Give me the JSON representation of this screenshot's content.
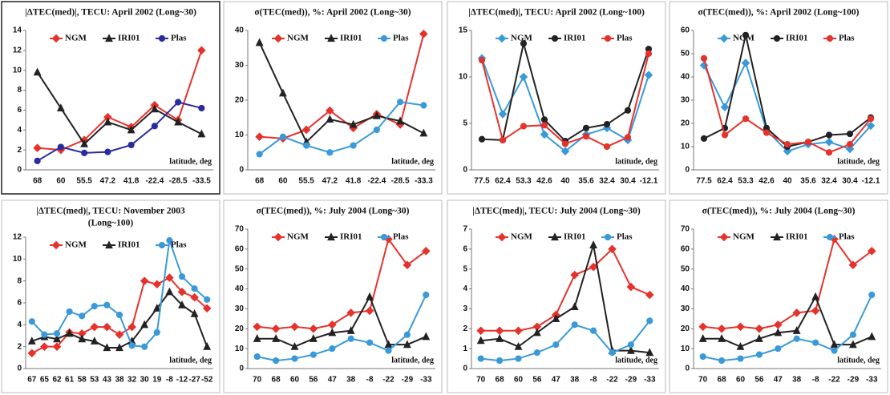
{
  "chart_data": [
    {
      "type": "line",
      "title": "|ΔTEC(med)|, TECU: April 2002 (Long~30)",
      "annotation": "latitude, deg",
      "categories": [
        "68",
        "60",
        "55.5",
        "47.2",
        "41.8",
        "-22.4",
        "-28.5",
        "-33.5"
      ],
      "ylim": [
        0,
        14
      ],
      "yticks": [
        0,
        2,
        4,
        6,
        8,
        10,
        12,
        14
      ],
      "series": [
        {
          "name": "NGM",
          "color": "#e5322c",
          "marker": "diamond",
          "values": [
            2.2,
            2.0,
            3.0,
            5.3,
            4.3,
            6.5,
            5.0,
            12.0
          ]
        },
        {
          "name": "IRI01",
          "color": "#222222",
          "marker": "triangle",
          "values": [
            9.8,
            6.2,
            2.6,
            4.8,
            4.0,
            6.1,
            4.8,
            3.6
          ]
        },
        {
          "name": "Plas",
          "color": "#2b2ba0",
          "marker": "circle",
          "values": [
            0.9,
            2.3,
            1.7,
            1.8,
            2.5,
            4.4,
            6.8,
            6.2
          ]
        }
      ]
    },
    {
      "type": "line",
      "title": "σ(TEC(med)), %: April 2002 (Long~30)",
      "annotation": "latitude, deg",
      "categories": [
        "68",
        "60",
        "55.5",
        "47.2",
        "41.8",
        "-22.4",
        "-28.5",
        "-33.3"
      ],
      "ylim": [
        0,
        40
      ],
      "yticks": [
        0,
        10,
        20,
        30,
        40
      ],
      "series": [
        {
          "name": "NGM",
          "color": "#e5322c",
          "marker": "diamond",
          "values": [
            9.5,
            9,
            11.5,
            17,
            12,
            16,
            13,
            39
          ]
        },
        {
          "name": "IRI01",
          "color": "#222222",
          "marker": "triangle",
          "values": [
            36.5,
            22,
            8,
            14.5,
            13,
            15.5,
            14,
            10.5
          ]
        },
        {
          "name": "Plas",
          "color": "#3a9ad9",
          "marker": "circle",
          "values": [
            4.5,
            9.5,
            7,
            5,
            7,
            11.5,
            19.5,
            18.5
          ]
        }
      ]
    },
    {
      "type": "line",
      "title": "|ΔTEC(med)|, TECU: April 2002 (Long~100)",
      "annotation": "latitude, deg",
      "categories": [
        "77.5",
        "62.4",
        "53.3",
        "42.6",
        "40",
        "35.6",
        "32.4",
        "30.4",
        "-12.1"
      ],
      "ylim": [
        0,
        15
      ],
      "yticks": [
        0,
        5,
        10,
        15
      ],
      "series": [
        {
          "name": "NGM",
          "color": "#3a9ad9",
          "marker": "diamond",
          "values": [
            12.0,
            6.0,
            10.0,
            3.8,
            2.0,
            3.8,
            4.5,
            3.2,
            10.2
          ]
        },
        {
          "name": "IRI01",
          "color": "#222222",
          "marker": "circle",
          "values": [
            3.3,
            3.2,
            13.6,
            5.4,
            3.1,
            4.5,
            4.9,
            6.4,
            13.0
          ]
        },
        {
          "name": "Plas",
          "color": "#e5322c",
          "marker": "circle",
          "values": [
            11.8,
            3.2,
            4.7,
            4.8,
            2.8,
            3.6,
            2.5,
            3.5,
            12.5
          ]
        }
      ]
    },
    {
      "type": "line",
      "title": "σ(TEC(med)), %: April 2002 (Long~100)",
      "annotation": "latitude, deg",
      "categories": [
        "77.5",
        "62.4",
        "53.3",
        "42.6",
        "40",
        "35.6",
        "32.4",
        "30.4",
        "-12.1"
      ],
      "ylim": [
        0,
        60
      ],
      "yticks": [
        0,
        10,
        20,
        30,
        40,
        50,
        60
      ],
      "series": [
        {
          "name": "NGM",
          "color": "#3a9ad9",
          "marker": "diamond",
          "values": [
            45,
            27,
            46,
            17,
            8,
            11,
            12,
            9,
            19
          ]
        },
        {
          "name": "IRI01",
          "color": "#222222",
          "marker": "circle",
          "values": [
            13.5,
            18,
            58,
            18,
            10,
            12,
            15,
            15.5,
            22.5
          ]
        },
        {
          "name": "Plas",
          "color": "#e5322c",
          "marker": "circle",
          "values": [
            48,
            15,
            22,
            16,
            11,
            12,
            7.5,
            11,
            22
          ]
        }
      ]
    },
    {
      "type": "line",
      "title": "|ΔTEC(med)|, TECU: November 2003",
      "subtitle": "(Long~100)",
      "annotation": "latitude, deg",
      "categories": [
        "67",
        "65",
        "62",
        "61",
        "58",
        "53",
        "43",
        "38",
        "32",
        "30",
        "19",
        "-8",
        "-12",
        "-27",
        "-52"
      ],
      "ylim": [
        0,
        12
      ],
      "yticks": [
        0,
        2,
        4,
        6,
        8,
        10,
        12
      ],
      "series": [
        {
          "name": "NGM",
          "color": "#e5322c",
          "marker": "diamond",
          "values": [
            1.4,
            2.0,
            2.0,
            3.3,
            3.2,
            3.8,
            3.8,
            3.1,
            3.8,
            8.0,
            7.7,
            8.3,
            7.0,
            6.5,
            5.5
          ]
        },
        {
          "name": "IRI01",
          "color": "#222222",
          "marker": "triangle",
          "values": [
            2.5,
            2.9,
            2.7,
            3.2,
            2.7,
            2.5,
            1.9,
            1.9,
            2.5,
            4.0,
            5.5,
            7.0,
            5.8,
            5.0,
            2.0
          ]
        },
        {
          "name": "Plas",
          "color": "#3a9ad9",
          "marker": "circle",
          "values": [
            4.3,
            3.1,
            3.2,
            5.2,
            4.8,
            5.7,
            5.8,
            4.9,
            2.1,
            2.0,
            3.3,
            11.7,
            8.4,
            7.3,
            6.3
          ]
        }
      ]
    },
    {
      "type": "line",
      "title": "σ(TEC(med)), %: July 2004 (Long~30)",
      "annotation": "latitude, deg",
      "categories": [
        "70",
        "68",
        "60",
        "56",
        "47",
        "38",
        "-8",
        "-22",
        "-29",
        "-33"
      ],
      "ylim": [
        0,
        70
      ],
      "yticks": [
        0,
        10,
        20,
        30,
        40,
        50,
        60,
        70
      ],
      "series": [
        {
          "name": "NGM",
          "color": "#e5322c",
          "marker": "diamond",
          "values": [
            21,
            20,
            21,
            20,
            22,
            28,
            29,
            65,
            52,
            59
          ]
        },
        {
          "name": "IRI01",
          "color": "#222222",
          "marker": "triangle",
          "values": [
            15,
            15,
            11,
            15,
            18,
            19,
            36,
            12,
            12,
            16
          ]
        },
        {
          "name": "Plas",
          "color": "#3a9ad9",
          "marker": "circle",
          "values": [
            6,
            4,
            5,
            7,
            10,
            15,
            13,
            9,
            17,
            37
          ]
        }
      ]
    },
    {
      "type": "line",
      "title": "|ΔTEC(med)|, TECU: July 2004 (Long~30)",
      "annotation": "latitude, deg",
      "categories": [
        "70",
        "68",
        "60",
        "56",
        "47",
        "38",
        "-8",
        "-22",
        "-29",
        "-33"
      ],
      "ylim": [
        0,
        7
      ],
      "yticks": [
        0,
        1,
        2,
        3,
        4,
        5,
        6,
        7
      ],
      "series": [
        {
          "name": "NGM",
          "color": "#e5322c",
          "marker": "diamond",
          "values": [
            1.9,
            1.9,
            1.9,
            2.1,
            2.7,
            4.7,
            5.1,
            6.0,
            4.1,
            3.7
          ]
        },
        {
          "name": "IRI01",
          "color": "#222222",
          "marker": "triangle",
          "values": [
            1.4,
            1.5,
            1.1,
            1.8,
            2.5,
            3.1,
            6.2,
            0.9,
            0.9,
            0.8
          ]
        },
        {
          "name": "Plas",
          "color": "#3a9ad9",
          "marker": "circle",
          "values": [
            0.5,
            0.4,
            0.5,
            0.8,
            1.2,
            2.2,
            1.9,
            0.8,
            1.2,
            2.4
          ]
        }
      ]
    },
    {
      "type": "line",
      "title": "σ(TEC(med)), %: July 2004 (Long~30)",
      "annotation": "latitude, deg",
      "categories": [
        "70",
        "68",
        "60",
        "56",
        "47",
        "38",
        "-8",
        "-22",
        "-29",
        "-33"
      ],
      "ylim": [
        0,
        70
      ],
      "yticks": [
        0,
        10,
        20,
        30,
        40,
        50,
        60,
        70
      ],
      "series": [
        {
          "name": "NGM",
          "color": "#e5322c",
          "marker": "diamond",
          "values": [
            21,
            20,
            21,
            20,
            22,
            28,
            29,
            65,
            52,
            59
          ]
        },
        {
          "name": "IRI01",
          "color": "#222222",
          "marker": "triangle",
          "values": [
            15,
            15,
            11,
            15,
            18,
            19,
            36,
            12,
            12,
            16
          ]
        },
        {
          "name": "Plas",
          "color": "#3a9ad9",
          "marker": "circle",
          "values": [
            6,
            4,
            5,
            7,
            10,
            15,
            13,
            9,
            17,
            37
          ]
        }
      ]
    }
  ]
}
